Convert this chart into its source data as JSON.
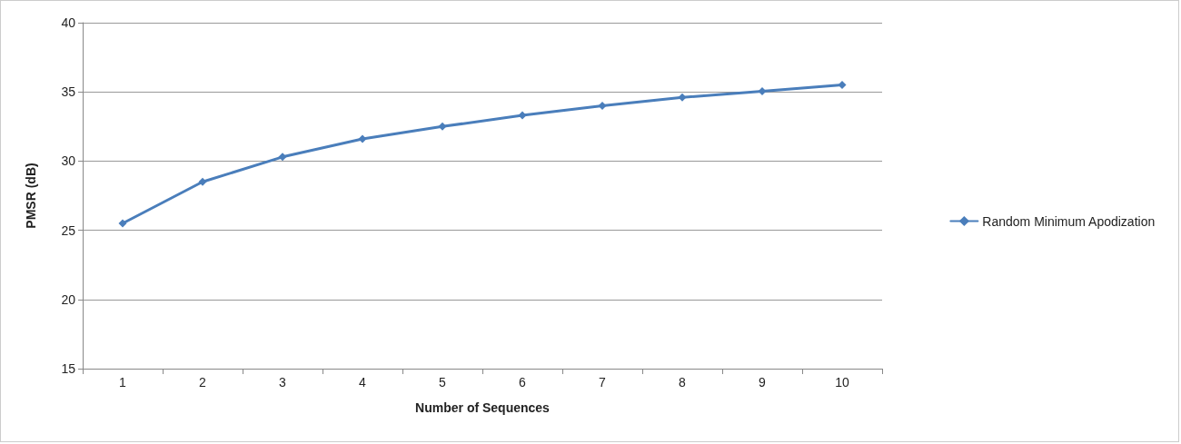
{
  "chart_data": {
    "type": "line",
    "xlabel": "Number of Sequences",
    "ylabel": "PMSR (dB)",
    "categories": [
      "1",
      "2",
      "3",
      "4",
      "5",
      "6",
      "7",
      "8",
      "9",
      "10"
    ],
    "series": [
      {
        "name": "Random Minimum Apodization",
        "color": "#4a7ebb",
        "values": [
          25.5,
          28.5,
          30.3,
          31.6,
          32.5,
          33.3,
          34.0,
          34.6,
          35.05,
          35.5
        ]
      }
    ],
    "ylim": [
      15,
      40
    ],
    "yticks": [
      15,
      20,
      25,
      30,
      35,
      40
    ],
    "grid": "y",
    "legend": "right",
    "marker": "diamond",
    "line_style": "solid"
  }
}
